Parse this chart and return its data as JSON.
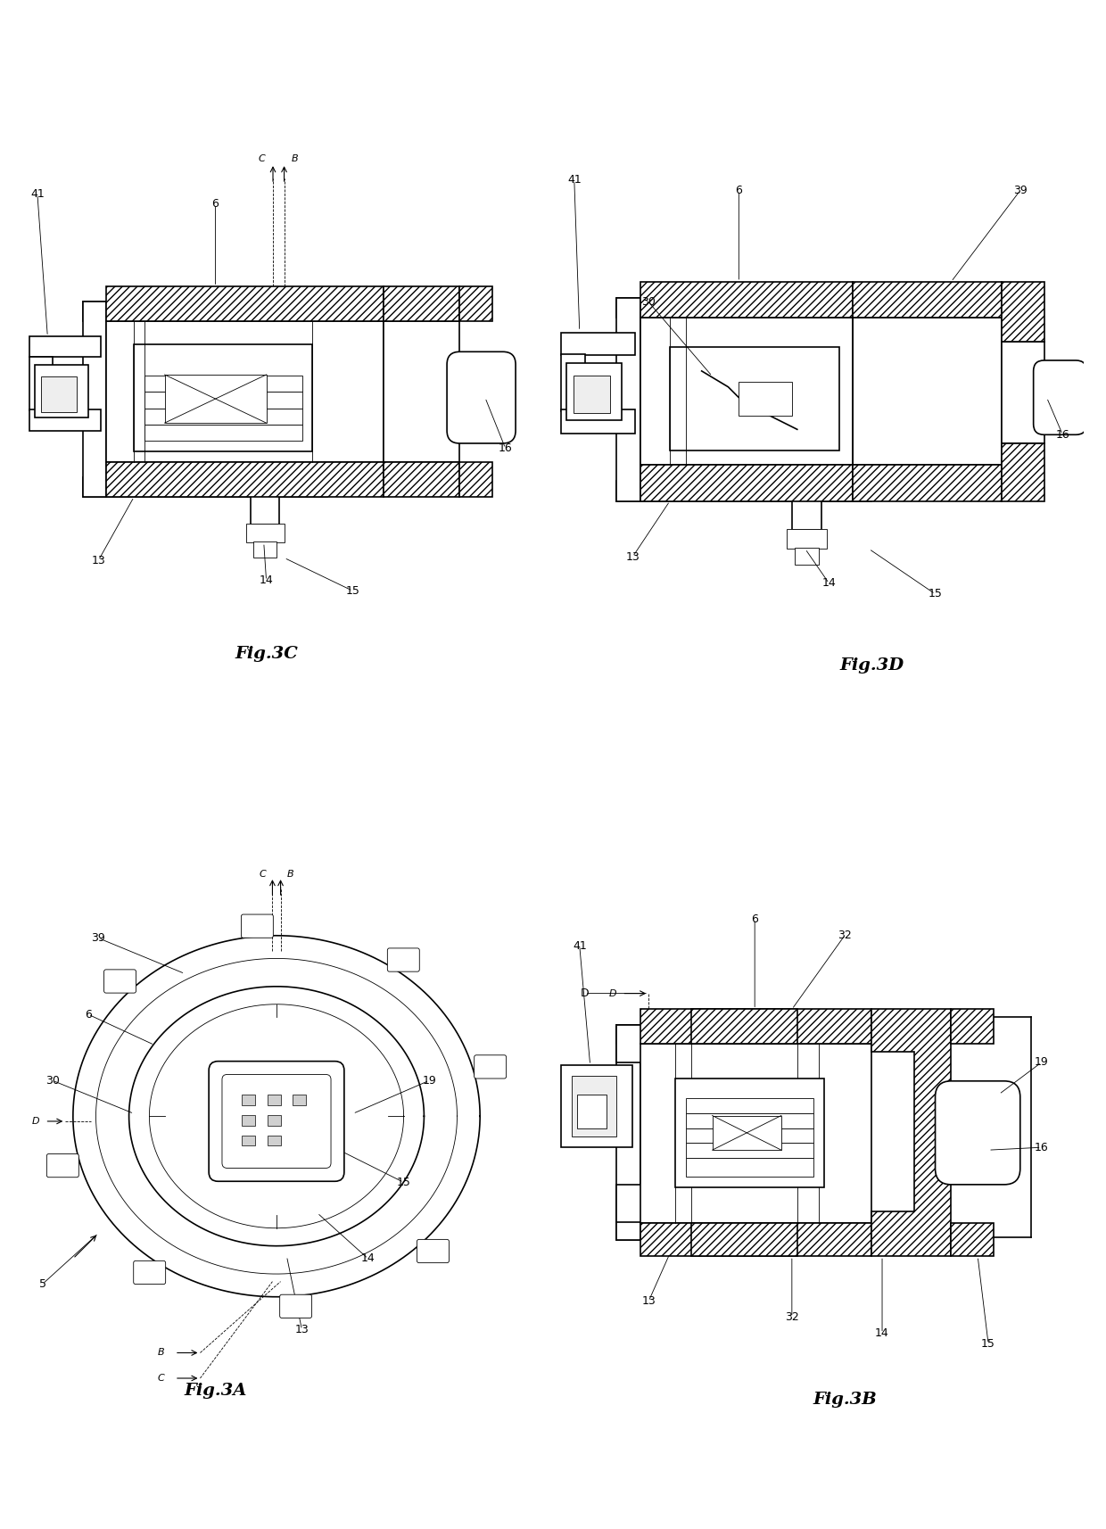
{
  "bg_color": "#ffffff",
  "line_color": "#000000",
  "fig_labels": {
    "3A": "Fig.3A",
    "3B": "Fig.3B",
    "3C": "Fig.3C",
    "3D": "Fig.3D"
  },
  "lw_main": 1.2,
  "lw_thin": 0.6,
  "lw_thick": 2.0,
  "hatch_density": "////",
  "font_label": 14,
  "font_part": 9
}
